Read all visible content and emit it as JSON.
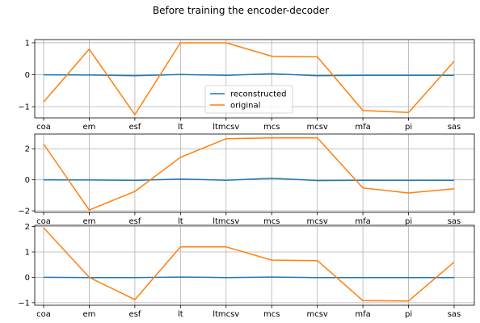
{
  "figure": {
    "title": "Before training the encoder-decoder"
  },
  "chart_data": [
    {
      "type": "line",
      "categories": [
        "coa",
        "em",
        "esf",
        "lt",
        "ltmcsv",
        "mcs",
        "mcsv",
        "mfa",
        "pi",
        "sas"
      ],
      "ylim": [
        -1.35,
        1.1
      ],
      "yticks": [
        -1,
        0,
        1
      ],
      "grid": true,
      "legend": "lower-center",
      "series": [
        {
          "name": "reconstructed",
          "color": "#1f77b4",
          "values": [
            0.0,
            -0.01,
            -0.03,
            0.01,
            -0.02,
            0.03,
            -0.03,
            -0.02,
            -0.02,
            -0.02
          ]
        },
        {
          "name": "original",
          "color": "#ff7f0e",
          "values": [
            -0.85,
            0.8,
            -1.25,
            1.0,
            1.0,
            0.58,
            0.56,
            -1.12,
            -1.18,
            0.42
          ]
        }
      ]
    },
    {
      "type": "line",
      "categories": [
        "coa",
        "em",
        "esf",
        "lt",
        "ltmcsv",
        "mcs",
        "mcsv",
        "mfa",
        "pi",
        "sas"
      ],
      "ylim": [
        -2.1,
        2.95
      ],
      "yticks": [
        -2,
        0,
        2
      ],
      "grid": true,
      "series": [
        {
          "name": "reconstructed",
          "color": "#1f77b4",
          "values": [
            0.0,
            -0.01,
            -0.04,
            0.05,
            -0.03,
            0.1,
            -0.05,
            -0.03,
            -0.04,
            -0.03
          ]
        },
        {
          "name": "original",
          "color": "#ff7f0e",
          "values": [
            2.3,
            -1.95,
            -0.75,
            1.45,
            2.65,
            2.7,
            2.7,
            -0.52,
            -0.85,
            -0.58
          ]
        }
      ]
    },
    {
      "type": "line",
      "categories": [
        "coa",
        "em",
        "esf",
        "lt",
        "ltmcsv",
        "mcs",
        "mcsv",
        "mfa",
        "pi",
        "sas"
      ],
      "ylim": [
        -1.1,
        2.05
      ],
      "yticks": [
        -1,
        0,
        1,
        2
      ],
      "grid": true,
      "series": [
        {
          "name": "reconstructed",
          "color": "#1f77b4",
          "values": [
            0.0,
            -0.01,
            -0.01,
            0.01,
            -0.01,
            0.01,
            -0.01,
            -0.01,
            -0.01,
            -0.01
          ]
        },
        {
          "name": "original",
          "color": "#ff7f0e",
          "values": [
            1.95,
            0.0,
            -0.88,
            1.2,
            1.2,
            0.68,
            0.66,
            -0.92,
            -0.93,
            0.6
          ]
        }
      ]
    }
  ]
}
